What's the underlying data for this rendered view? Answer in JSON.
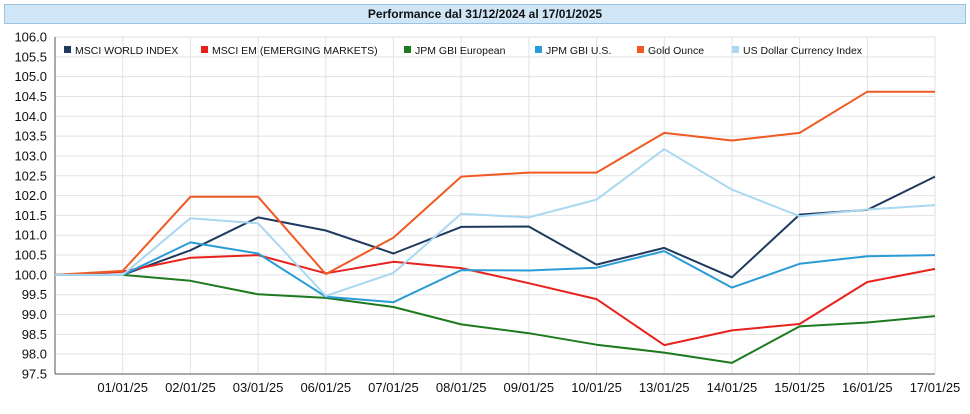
{
  "chart_data": {
    "type": "line",
    "title": "Performance dal 31/12/2024 al 17/01/2025",
    "x": [
      "",
      "01/01/25",
      "02/01/25",
      "03/01/25",
      "06/01/25",
      "07/01/25",
      "08/01/25",
      "09/01/25",
      "10/01/25",
      "13/01/25",
      "14/01/25",
      "15/01/25",
      "16/01/25",
      "17/01/25"
    ],
    "ylim": [
      97.5,
      106.0
    ],
    "yticks": [
      "106.0",
      "105.5",
      "105.0",
      "104.5",
      "104.0",
      "103.5",
      "103.0",
      "102.5",
      "102.0",
      "101.5",
      "101.0",
      "100.5",
      "100.0",
      "99.5",
      "99.0",
      "98.5",
      "98.0",
      "97.5"
    ],
    "grid": true,
    "legend_position": "top",
    "series": [
      {
        "name": "MSCI WORLD INDEX",
        "color": "#1f3a5f",
        "values": [
          100.0,
          100.0,
          100.62,
          101.45,
          101.12,
          100.54,
          101.21,
          101.22,
          100.26,
          100.68,
          99.94,
          101.52,
          101.64,
          102.48
        ]
      },
      {
        "name": "MSCI EM (EMERGING MARKETS)",
        "color": "#e8211d",
        "values": [
          100.0,
          100.08,
          100.43,
          100.5,
          100.04,
          100.33,
          100.17,
          99.79,
          99.39,
          98.23,
          98.6,
          98.76,
          99.82,
          100.15
        ]
      },
      {
        "name": "JPM GBI European",
        "color": "#1e7a1e",
        "values": [
          100.0,
          100.0,
          99.85,
          99.51,
          99.42,
          99.19,
          98.75,
          98.53,
          98.24,
          98.04,
          97.78,
          98.7,
          98.8,
          98.96
        ]
      },
      {
        "name": "JPM GBI U.S.",
        "color": "#2b9bd6",
        "values": [
          100.0,
          100.0,
          100.82,
          100.54,
          99.45,
          99.31,
          100.12,
          100.11,
          100.18,
          100.6,
          99.68,
          100.28,
          100.47,
          100.5
        ]
      },
      {
        "name": "Gold Ounce",
        "color": "#f05a22",
        "values": [
          100.0,
          100.1,
          101.97,
          101.97,
          100.02,
          100.94,
          102.48,
          102.58,
          102.58,
          103.58,
          103.39,
          103.58,
          104.62,
          104.62
        ]
      },
      {
        "name": "US Dollar Currency Index",
        "color": "#a9d8f0",
        "values": [
          100.0,
          100.0,
          101.43,
          101.3,
          99.47,
          100.05,
          101.54,
          101.45,
          101.9,
          103.17,
          102.15,
          101.48,
          101.65,
          101.76
        ]
      }
    ]
  }
}
